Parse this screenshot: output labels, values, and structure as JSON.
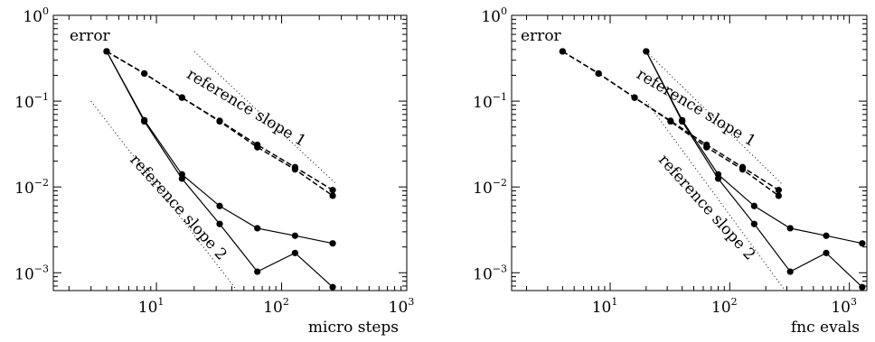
{
  "chart_data": [
    {
      "type": "line",
      "xscale": "log",
      "yscale": "log",
      "xlim": [
        1.5,
        1000
      ],
      "ylim": [
        0.00062,
        1
      ],
      "x_ticks": [
        {
          "value": 10,
          "base": "10",
          "exp": "1"
        },
        {
          "value": 100,
          "base": "10",
          "exp": "2"
        },
        {
          "value": 1000,
          "base": "10",
          "exp": "3"
        }
      ],
      "y_ticks": [
        {
          "value": 1,
          "base": "10",
          "exp": "0"
        },
        {
          "value": 0.1,
          "base": "10",
          "exp": "−1"
        },
        {
          "value": 0.01,
          "base": "10",
          "exp": "−2"
        },
        {
          "value": 0.001,
          "base": "10",
          "exp": "−3"
        }
      ],
      "xlabel": "micro steps",
      "ylabel": "error",
      "series": [
        {
          "style": "dashed",
          "points": [
            [
              4,
              0.38
            ],
            [
              8,
              0.21
            ],
            [
              16,
              0.11
            ],
            [
              32,
              0.059
            ],
            [
              64,
              0.031
            ],
            [
              128,
              0.017
            ],
            [
              256,
              0.0092
            ]
          ]
        },
        {
          "style": "dashed",
          "points": [
            [
              4,
              0.38
            ],
            [
              8,
              0.21
            ],
            [
              16,
              0.11
            ],
            [
              32,
              0.058
            ],
            [
              64,
              0.029
            ],
            [
              128,
              0.016
            ],
            [
              256,
              0.0079
            ]
          ]
        },
        {
          "style": "solid",
          "points": [
            [
              4,
              0.38
            ],
            [
              8,
              0.06
            ],
            [
              16,
              0.014
            ],
            [
              32,
              0.006
            ],
            [
              64,
              0.0033
            ],
            [
              128,
              0.0027
            ],
            [
              256,
              0.0022
            ]
          ]
        },
        {
          "style": "solid",
          "points": [
            [
              4,
              0.38
            ],
            [
              8,
              0.058
            ],
            [
              16,
              0.0125
            ],
            [
              32,
              0.0037
            ],
            [
              64,
              0.00103
            ],
            [
              128,
              0.0017
            ],
            [
              256,
              0.00068
            ]
          ]
        },
        {
          "style": "dotted",
          "points": [
            [
              20,
              0.38
            ],
            [
              270,
              0.011
            ]
          ]
        },
        {
          "style": "dotted",
          "points": [
            [
              3,
              0.1
            ],
            [
              44,
              0.00062
            ]
          ]
        }
      ],
      "annotations": [
        {
          "text": "reference slope 1",
          "x": 50,
          "y": 0.075,
          "angle": 31
        },
        {
          "text": "reference slope 2",
          "x": 14,
          "y": 0.0053,
          "angle": 48
        }
      ]
    },
    {
      "type": "line",
      "xscale": "log",
      "yscale": "log",
      "xlim": [
        1.5,
        1400
      ],
      "ylim": [
        0.00062,
        1
      ],
      "x_ticks": [
        {
          "value": 10,
          "base": "10",
          "exp": "1"
        },
        {
          "value": 100,
          "base": "10",
          "exp": "2"
        },
        {
          "value": 1000,
          "base": "10",
          "exp": "3"
        }
      ],
      "y_ticks": [
        {
          "value": 1,
          "base": "10",
          "exp": "0"
        },
        {
          "value": 0.1,
          "base": "10",
          "exp": "−1"
        },
        {
          "value": 0.01,
          "base": "10",
          "exp": "−2"
        },
        {
          "value": 0.001,
          "base": "10",
          "exp": "−3"
        }
      ],
      "xlabel": "fnc evals",
      "ylabel": "error",
      "series": [
        {
          "style": "dashed",
          "points": [
            [
              4,
              0.38
            ],
            [
              8,
              0.21
            ],
            [
              16,
              0.11
            ],
            [
              32,
              0.059
            ],
            [
              64,
              0.031
            ],
            [
              128,
              0.017
            ],
            [
              256,
              0.0092
            ]
          ]
        },
        {
          "style": "dashed",
          "points": [
            [
              4,
              0.38
            ],
            [
              8,
              0.21
            ],
            [
              16,
              0.11
            ],
            [
              32,
              0.058
            ],
            [
              64,
              0.029
            ],
            [
              128,
              0.016
            ],
            [
              256,
              0.0079
            ]
          ]
        },
        {
          "style": "solid",
          "points": [
            [
              20,
              0.38
            ],
            [
              40,
              0.06
            ],
            [
              80,
              0.014
            ],
            [
              160,
              0.006
            ],
            [
              320,
              0.0033
            ],
            [
              640,
              0.0027
            ],
            [
              1280,
              0.0022
            ]
          ]
        },
        {
          "style": "solid",
          "points": [
            [
              20,
              0.38
            ],
            [
              40,
              0.058
            ],
            [
              80,
              0.0125
            ],
            [
              160,
              0.0037
            ],
            [
              320,
              0.00103
            ],
            [
              640,
              0.0017
            ],
            [
              1280,
              0.00068
            ]
          ]
        },
        {
          "style": "dotted",
          "points": [
            [
              20,
              0.38
            ],
            [
              270,
              0.011
            ]
          ]
        },
        {
          "style": "dotted",
          "points": [
            [
              20,
              0.1
            ],
            [
              290,
              0.00062
            ]
          ]
        }
      ],
      "annotations": [
        {
          "text": "reference slope 1",
          "x": 50,
          "y": 0.075,
          "angle": 31
        },
        {
          "text": "reference slope 2",
          "x": 60,
          "y": 0.0053,
          "angle": 48
        }
      ]
    }
  ]
}
